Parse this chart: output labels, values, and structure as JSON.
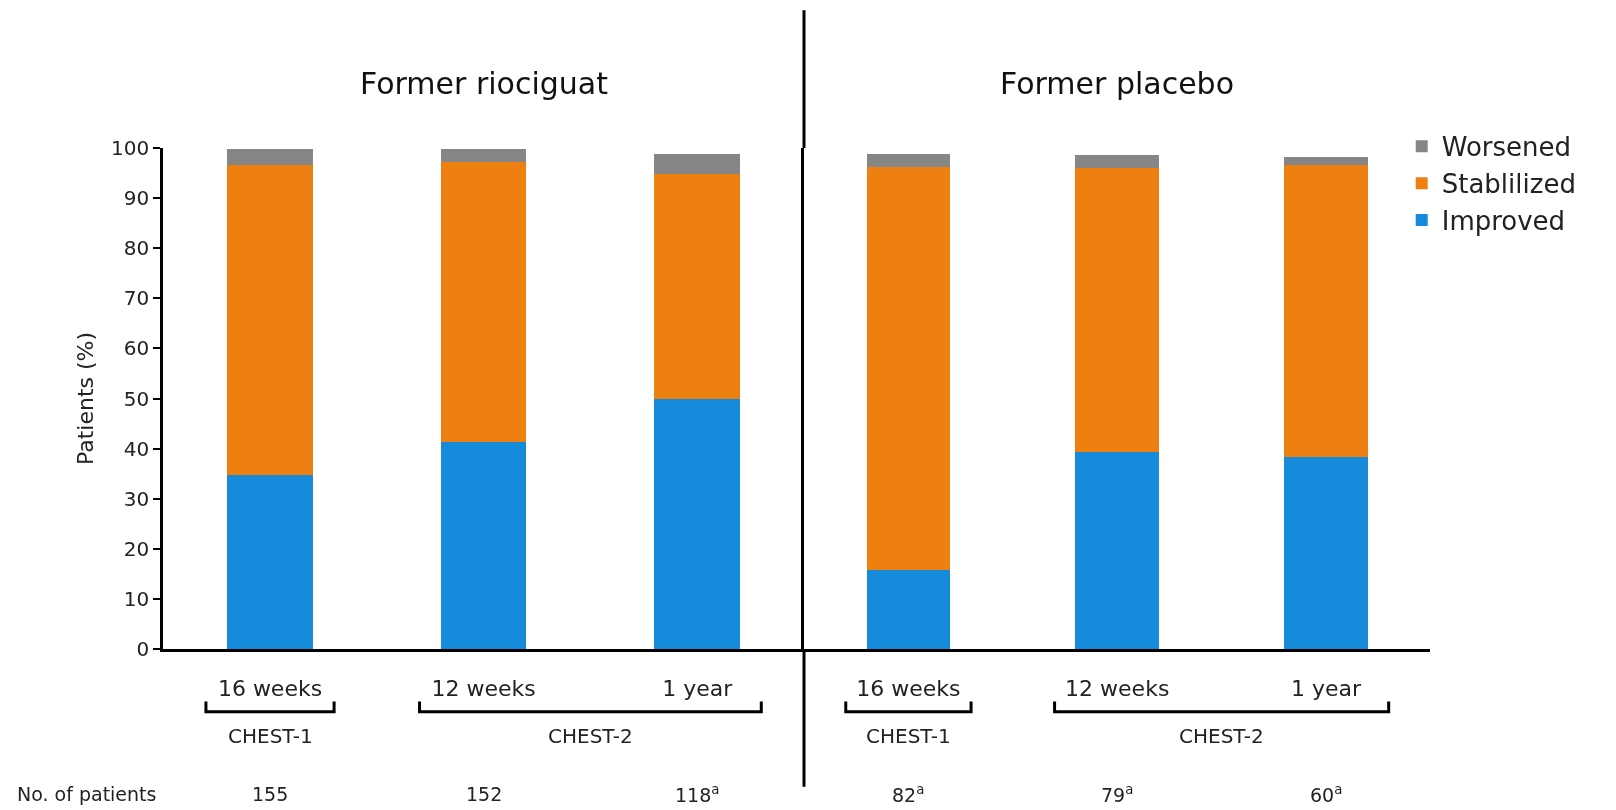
{
  "chart_data": [
    {
      "type": "bar",
      "title": "Former riociguat",
      "ylabel": "Patients (%)",
      "categories": [
        "16 weeks",
        "12 weeks",
        "1 year"
      ],
      "stacked": true,
      "series": [
        {
          "name": "Improved",
          "color": "#168bdb",
          "values": [
            34.7,
            41.3,
            50.0
          ]
        },
        {
          "name": "Stablilized",
          "color": "#ee7f11",
          "values": [
            62.0,
            56.0,
            44.9
          ]
        },
        {
          "name": "Worsened",
          "color": "#868686",
          "values": [
            3.1,
            2.5,
            4.0
          ]
        }
      ],
      "ylim": [
        0,
        100
      ],
      "yticks": [
        0,
        10,
        20,
        30,
        40,
        50,
        60,
        70,
        80,
        90,
        100
      ],
      "legend": "top right",
      "annotations": [
        "CHEST-1",
        "CHEST-2",
        "No. of patients",
        "155",
        "152",
        "118$^{a}$"
      ]
    },
    {
      "type": "bar",
      "title": "Former placebo",
      "categories": [
        "16 weeks",
        "12 weeks",
        "1 year"
      ],
      "stacked": true,
      "series": [
        {
          "color": "#168bdb",
          "values": [
            15.8,
            39.4,
            38.4
          ]
        },
        {
          "color": "#ee7f11",
          "values": [
            80.5,
            56.7,
            58.2
          ]
        },
        {
          "color": "#868686",
          "values": [
            2.5,
            2.5,
            1.6
          ]
        }
      ],
      "ylim": [
        0,
        100
      ],
      "yticks": [
        0,
        10,
        20,
        30,
        40,
        50,
        60,
        70,
        80,
        90,
        100
      ],
      "tick_labels": "x",
      "annotations": [
        "CHEST-1",
        "CHEST-2",
        "82$^{a}$",
        "79$^{a}$",
        "60$^{a}$"
      ]
    }
  ]
}
